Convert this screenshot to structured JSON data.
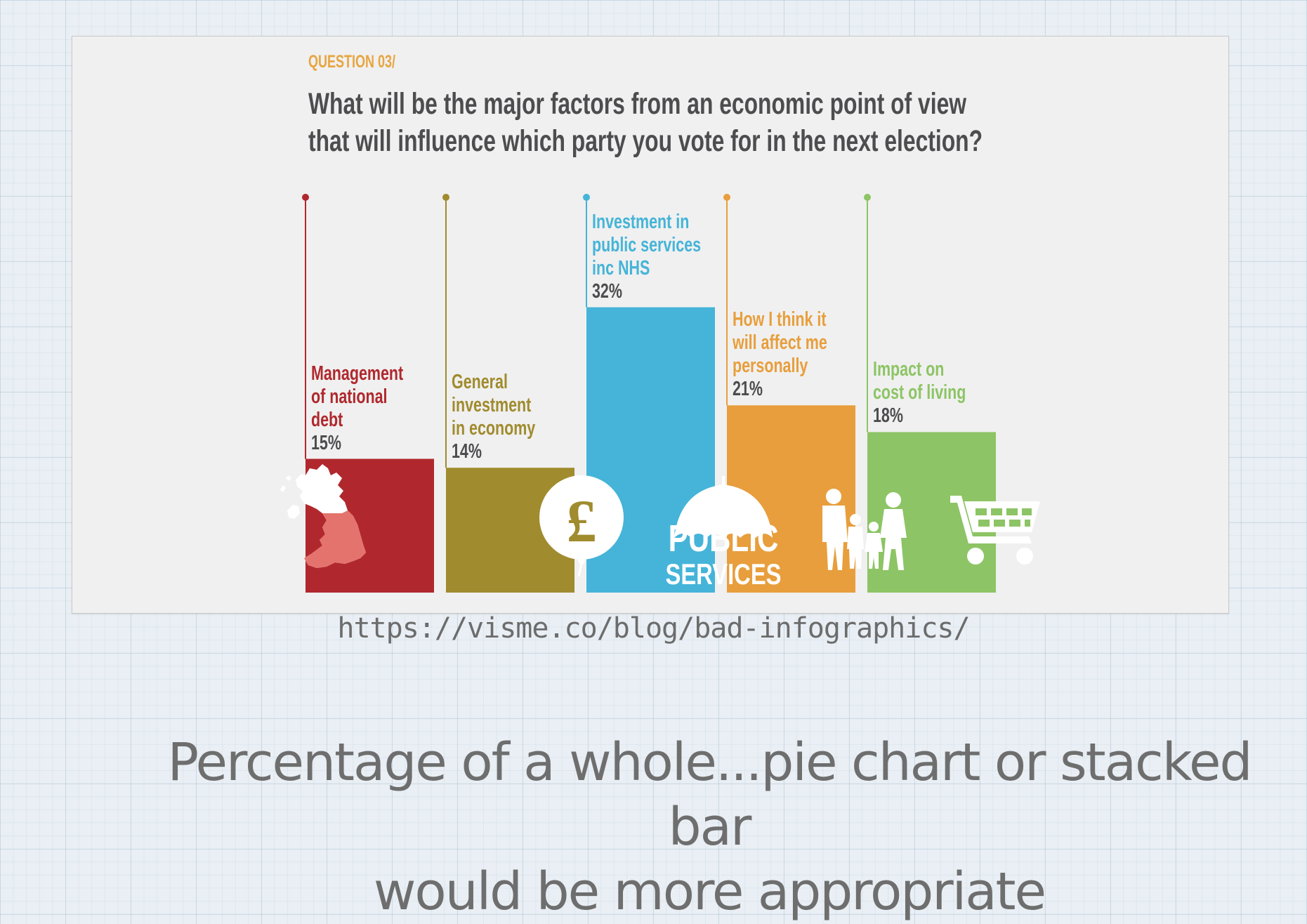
{
  "slide": {
    "question_label": "QUESTION 03/",
    "question_text_line1": "What will be the major factors from an economic point of view",
    "question_text_line2": "that will influence which party you vote for in the next election?",
    "source_url": "https://visme.co/blog/bad-infographics/",
    "caption_line1": "Percentage of a whole...pie chart or stacked bar",
    "caption_line2": "would be more appropriate"
  },
  "icons": {
    "public_services_line1": "PUBLIC",
    "public_services_line2": "SERVICES"
  },
  "chart_data": {
    "type": "bar",
    "title": "What will be the major factors from an economic point of view that will influence which party you vote for in the next election?",
    "categories": [
      "Management of national debt",
      "General investment in economy",
      "Investment in public services inc NHS",
      "How I think it will affect me personally",
      "Impact on cost of living"
    ],
    "values": [
      15,
      14,
      32,
      21,
      18
    ],
    "value_labels": [
      "15%",
      "14%",
      "32%",
      "21%",
      "18%"
    ],
    "label_lines": [
      [
        "Management",
        "of national",
        "debt"
      ],
      [
        "General",
        "investment",
        "in economy"
      ],
      [
        "Investment in",
        "public services",
        "inc NHS"
      ],
      [
        "How I think it",
        "will affect me",
        "personally"
      ],
      [
        "Impact on",
        "cost of living"
      ]
    ],
    "colors": [
      "#b0282d",
      "#a08b2e",
      "#45b4d8",
      "#e89e3c",
      "#8dc465"
    ],
    "label_colors": [
      "#b0282d",
      "#a08b2e",
      "#45b4d8",
      "#e89e3c",
      "#8dc465"
    ],
    "icons": [
      "uk-map-icon",
      "pound-balloon-icon",
      "umbrella-icon",
      "family-icon",
      "shopping-cart-icon"
    ],
    "grid": false,
    "legend": "none"
  }
}
